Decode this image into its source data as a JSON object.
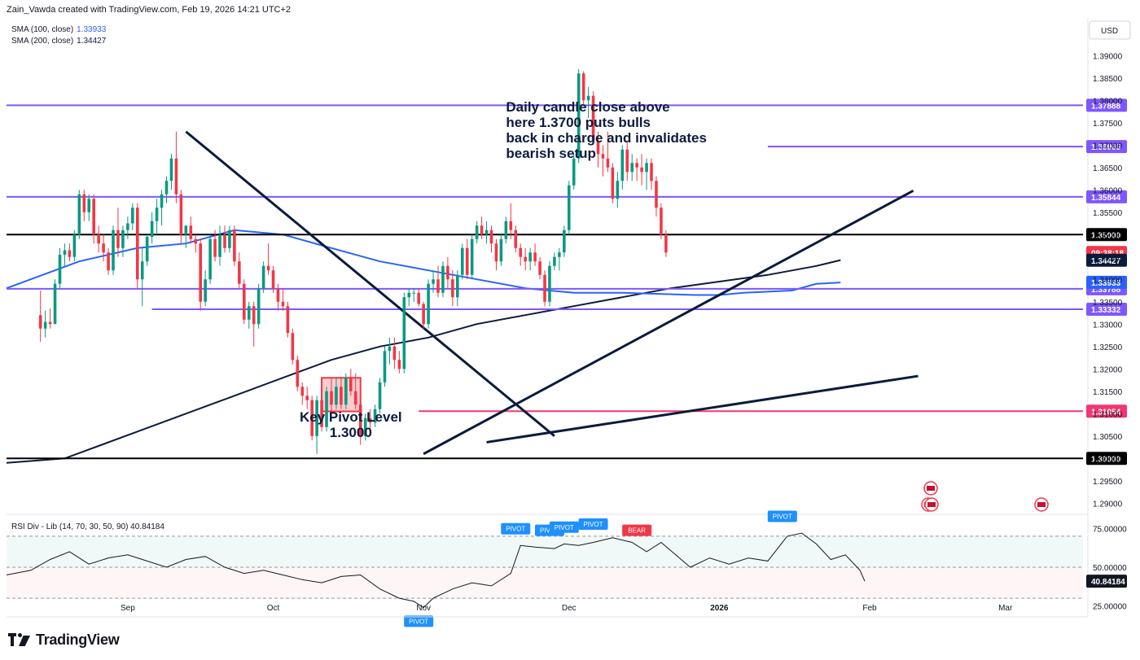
{
  "header": {
    "text": "Zain_Vawda created with TradingView.com, Feb 19, 2026 14:21 UTC+2"
  },
  "indicators": [
    {
      "label": "SMA (100, close)",
      "value": "1.33933",
      "color": "#2962ff"
    },
    {
      "label": "SMA (200, close)",
      "value": "1.34427",
      "color": "#0b1b3d"
    }
  ],
  "currency": "USD",
  "chart_data": {
    "type": "candlestick",
    "ylim": [
      1.2875,
      1.3915
    ],
    "y_ticks": [
      "1.39000",
      "1.38500",
      "1.38000",
      "1.37500",
      "1.37000",
      "1.36500",
      "1.36000",
      "1.35500",
      "1.35000",
      "1.34500",
      "1.34000",
      "1.33500",
      "1.33000",
      "1.32500",
      "1.32000",
      "1.31500",
      "1.31000",
      "1.30500",
      "1.30000",
      "1.29500",
      "1.29000"
    ],
    "x_ticks": [
      {
        "label": "Sep",
        "x": 18
      },
      {
        "label": "Oct",
        "x": 48
      },
      {
        "label": "Nov",
        "x": 79
      },
      {
        "label": "Dec",
        "x": 109
      },
      {
        "label": "2026",
        "x": 140
      },
      {
        "label": "Feb",
        "x": 171
      },
      {
        "label": "Mar",
        "x": 199
      }
    ],
    "x_range": [
      -7,
      215
    ],
    "candles": [
      [
        1.332,
        1.3375,
        1.326,
        1.329
      ],
      [
        1.329,
        1.333,
        1.327,
        1.3305
      ],
      [
        1.3305,
        1.3335,
        1.329,
        1.33
      ],
      [
        1.33,
        1.34,
        1.33,
        1.339
      ],
      [
        1.339,
        1.347,
        1.338,
        1.3455
      ],
      [
        1.3455,
        1.348,
        1.343,
        1.3465
      ],
      [
        1.3465,
        1.348,
        1.344,
        1.345
      ],
      [
        1.345,
        1.351,
        1.344,
        1.35
      ],
      [
        1.35,
        1.36,
        1.349,
        1.359
      ],
      [
        1.359,
        1.36,
        1.353,
        1.355
      ],
      [
        1.355,
        1.359,
        1.353,
        1.358
      ],
      [
        1.358,
        1.359,
        1.348,
        1.35
      ],
      [
        1.35,
        1.352,
        1.346,
        1.348
      ],
      [
        1.348,
        1.35,
        1.344,
        1.346
      ],
      [
        1.346,
        1.347,
        1.341,
        1.342
      ],
      [
        1.342,
        1.352,
        1.341,
        1.351
      ],
      [
        1.351,
        1.356,
        1.345,
        1.347
      ],
      [
        1.347,
        1.352,
        1.345,
        1.351
      ],
      [
        1.351,
        1.354,
        1.349,
        1.3525
      ],
      [
        1.3525,
        1.357,
        1.351,
        1.356
      ],
      [
        1.356,
        1.357,
        1.338,
        1.34
      ],
      [
        1.34,
        1.347,
        1.334,
        1.344
      ],
      [
        1.344,
        1.35,
        1.343,
        1.3495
      ],
      [
        1.3495,
        1.355,
        1.348,
        1.353
      ],
      [
        1.353,
        1.358,
        1.35,
        1.356
      ],
      [
        1.356,
        1.36,
        1.352,
        1.359
      ],
      [
        1.359,
        1.363,
        1.357,
        1.362
      ],
      [
        1.362,
        1.368,
        1.36,
        1.367
      ],
      [
        1.367,
        1.373,
        1.357,
        1.359
      ],
      [
        1.359,
        1.36,
        1.348,
        1.35
      ],
      [
        1.35,
        1.352,
        1.347,
        1.352
      ],
      [
        1.352,
        1.354,
        1.348,
        1.349
      ],
      [
        1.349,
        1.35,
        1.346,
        1.348
      ],
      [
        1.348,
        1.349,
        1.333,
        1.335
      ],
      [
        1.335,
        1.342,
        1.334,
        1.34
      ],
      [
        1.34,
        1.35,
        1.339,
        1.349
      ],
      [
        1.349,
        1.351,
        1.344,
        1.345
      ],
      [
        1.345,
        1.352,
        1.343,
        1.35
      ],
      [
        1.35,
        1.352,
        1.346,
        1.347
      ],
      [
        1.347,
        1.352,
        1.346,
        1.351
      ],
      [
        1.351,
        1.352,
        1.343,
        1.344
      ],
      [
        1.344,
        1.346,
        1.338,
        1.339
      ],
      [
        1.339,
        1.34,
        1.33,
        1.331
      ],
      [
        1.331,
        1.335,
        1.329,
        1.334
      ],
      [
        1.334,
        1.335,
        1.325,
        1.33
      ],
      [
        1.33,
        1.339,
        1.329,
        1.338
      ],
      [
        1.338,
        1.344,
        1.337,
        1.343
      ],
      [
        1.343,
        1.348,
        1.341,
        1.342
      ],
      [
        1.342,
        1.343,
        1.337,
        1.338
      ],
      [
        1.338,
        1.339,
        1.333,
        1.335
      ],
      [
        1.335,
        1.338,
        1.333,
        1.334
      ],
      [
        1.334,
        1.335,
        1.327,
        1.328
      ],
      [
        1.328,
        1.329,
        1.321,
        1.322
      ],
      [
        1.322,
        1.323,
        1.315,
        1.316
      ],
      [
        1.316,
        1.317,
        1.312,
        1.314
      ],
      [
        1.314,
        1.316,
        1.311,
        1.313
      ],
      [
        1.313,
        1.314,
        1.304,
        1.305
      ],
      [
        1.305,
        1.314,
        1.301,
        1.313
      ],
      [
        1.313,
        1.314,
        1.306,
        1.307
      ],
      [
        1.307,
        1.316,
        1.306,
        1.315
      ],
      [
        1.315,
        1.318,
        1.31,
        1.312
      ],
      [
        1.312,
        1.318,
        1.311,
        1.316
      ],
      [
        1.316,
        1.318,
        1.311,
        1.312
      ],
      [
        1.312,
        1.319,
        1.311,
        1.318
      ],
      [
        1.318,
        1.32,
        1.314,
        1.315
      ],
      [
        1.315,
        1.319,
        1.311,
        1.312
      ],
      [
        1.312,
        1.314,
        1.303,
        1.305
      ],
      [
        1.305,
        1.31,
        1.304,
        1.309
      ],
      [
        1.309,
        1.311,
        1.305,
        1.308
      ],
      [
        1.308,
        1.312,
        1.307,
        1.311
      ],
      [
        1.311,
        1.318,
        1.31,
        1.317
      ],
      [
        1.317,
        1.325,
        1.316,
        1.324
      ],
      [
        1.324,
        1.327,
        1.321,
        1.325
      ],
      [
        1.325,
        1.327,
        1.32,
        1.322
      ],
      [
        1.322,
        1.324,
        1.319,
        1.32
      ],
      [
        1.32,
        1.337,
        1.319,
        1.336
      ],
      [
        1.336,
        1.338,
        1.334,
        1.337
      ],
      [
        1.337,
        1.338,
        1.335,
        1.337
      ],
      [
        1.337,
        1.338,
        1.334,
        1.3345
      ],
      [
        1.3345,
        1.335,
        1.329,
        1.33
      ],
      [
        1.33,
        1.34,
        1.329,
        1.339
      ],
      [
        1.339,
        1.342,
        1.337,
        1.34
      ],
      [
        1.34,
        1.343,
        1.336,
        1.337
      ],
      [
        1.337,
        1.344,
        1.336,
        1.343
      ],
      [
        1.343,
        1.345,
        1.338,
        1.34
      ],
      [
        1.34,
        1.342,
        1.334,
        1.336
      ],
      [
        1.336,
        1.342,
        1.334,
        1.341
      ],
      [
        1.341,
        1.348,
        1.34,
        1.347
      ],
      [
        1.347,
        1.349,
        1.34,
        1.341
      ],
      [
        1.341,
        1.35,
        1.34,
        1.349
      ],
      [
        1.349,
        1.353,
        1.348,
        1.352
      ],
      [
        1.352,
        1.354,
        1.349,
        1.35
      ],
      [
        1.35,
        1.353,
        1.348,
        1.351
      ],
      [
        1.351,
        1.352,
        1.346,
        1.348
      ],
      [
        1.348,
        1.349,
        1.342,
        1.344
      ],
      [
        1.344,
        1.35,
        1.343,
        1.349
      ],
      [
        1.349,
        1.354,
        1.348,
        1.353
      ],
      [
        1.353,
        1.357,
        1.349,
        1.351
      ],
      [
        1.351,
        1.352,
        1.346,
        1.347
      ],
      [
        1.347,
        1.348,
        1.343,
        1.345
      ],
      [
        1.345,
        1.347,
        1.342,
        1.344
      ],
      [
        1.344,
        1.347,
        1.342,
        1.346
      ],
      [
        1.346,
        1.348,
        1.343,
        1.344
      ],
      [
        1.344,
        1.345,
        1.34,
        1.341
      ],
      [
        1.341,
        1.342,
        1.334,
        1.335
      ],
      [
        1.335,
        1.344,
        1.334,
        1.343
      ],
      [
        1.343,
        1.346,
        1.342,
        1.345
      ],
      [
        1.345,
        1.347,
        1.342,
        1.346
      ],
      [
        1.346,
        1.352,
        1.345,
        1.351
      ],
      [
        1.351,
        1.362,
        1.35,
        1.361
      ],
      [
        1.361,
        1.368,
        1.36,
        1.367
      ],
      [
        1.367,
        1.387,
        1.366,
        1.386
      ],
      [
        1.386,
        1.3865,
        1.379,
        1.38
      ],
      [
        1.38,
        1.383,
        1.376,
        1.381
      ],
      [
        1.381,
        1.382,
        1.37,
        1.371
      ],
      [
        1.371,
        1.373,
        1.365,
        1.368
      ],
      [
        1.368,
        1.37,
        1.363,
        1.367
      ],
      [
        1.367,
        1.373,
        1.364,
        1.365
      ],
      [
        1.365,
        1.366,
        1.357,
        1.358
      ],
      [
        1.358,
        1.364,
        1.356,
        1.362
      ],
      [
        1.362,
        1.37,
        1.36,
        1.369
      ],
      [
        1.369,
        1.371,
        1.362,
        1.364
      ],
      [
        1.364,
        1.368,
        1.362,
        1.366
      ],
      [
        1.366,
        1.367,
        1.362,
        1.365
      ],
      [
        1.365,
        1.368,
        1.361,
        1.364
      ],
      [
        1.364,
        1.367,
        1.36,
        1.366
      ],
      [
        1.366,
        1.367,
        1.36,
        1.362
      ],
      [
        1.362,
        1.363,
        1.354,
        1.356
      ],
      [
        1.356,
        1.357,
        1.349,
        1.35
      ],
      [
        1.35,
        1.351,
        1.345,
        1.346
      ]
    ],
    "sma100": [
      [
        -7,
        1.338
      ],
      [
        8,
        1.344
      ],
      [
        20,
        1.347
      ],
      [
        30,
        1.348
      ],
      [
        40,
        1.351
      ],
      [
        50,
        1.35
      ],
      [
        60,
        1.347
      ],
      [
        70,
        1.344
      ],
      [
        80,
        1.342
      ],
      [
        90,
        1.34
      ],
      [
        100,
        1.338
      ],
      [
        110,
        1.337
      ],
      [
        120,
        1.337
      ],
      [
        135,
        1.3365
      ],
      [
        140,
        1.3365
      ],
      [
        145,
        1.337
      ],
      [
        155,
        1.3375
      ],
      [
        160,
        1.339
      ],
      [
        165,
        1.3393
      ]
    ],
    "sma200": [
      [
        -7,
        1.299
      ],
      [
        5,
        1.3
      ],
      [
        20,
        1.306
      ],
      [
        30,
        1.31
      ],
      [
        40,
        1.314
      ],
      [
        50,
        1.318
      ],
      [
        60,
        1.322
      ],
      [
        70,
        1.325
      ],
      [
        80,
        1.327
      ],
      [
        90,
        1.33
      ],
      [
        100,
        1.332
      ],
      [
        110,
        1.334
      ],
      [
        120,
        1.336
      ],
      [
        130,
        1.338
      ],
      [
        140,
        1.3395
      ],
      [
        150,
        1.341
      ],
      [
        160,
        1.343
      ],
      [
        165,
        1.3443
      ]
    ],
    "h_levels": [
      {
        "value": 1.37888,
        "label": "1.37888",
        "color": "#7e57ff",
        "x0": -7
      },
      {
        "value": 1.36965,
        "label": "1.36965",
        "color": "#7e57ff",
        "x0": 150
      },
      {
        "value": 1.35844,
        "label": "1.35844",
        "color": "#7e57ff",
        "x0": -7
      },
      {
        "value": 1.35,
        "label": "1.35000",
        "color": "#000000",
        "x0": -7
      },
      {
        "value": 1.33788,
        "label": "1.33788",
        "color": "#7e57ff",
        "x0": -7
      },
      {
        "value": 1.33332,
        "label": "1.33332",
        "color": "#7e57ff",
        "x0": 23
      },
      {
        "value": 1.31054,
        "label": "1.31054",
        "color": "#f23672",
        "x0": 78
      },
      {
        "value": 1.3,
        "label": "1.30000",
        "color": "#000000",
        "x0": -7
      }
    ],
    "right_badges": [
      {
        "value": 1.346,
        "text": "09:38:18",
        "color": "#f23645"
      },
      {
        "value": 1.34427,
        "text": "1.34427",
        "color": "#0b1b3d"
      },
      {
        "value": 1.33933,
        "text": "1.33933",
        "color": "#2962ff"
      }
    ],
    "trendlines": [
      {
        "p1": [
          30,
          1.373
        ],
        "p2": [
          106,
          1.305
        ]
      },
      {
        "p1": [
          79,
          1.301
        ],
        "p2": [
          180,
          1.3598
        ]
      },
      {
        "p1": [
          92,
          1.3036
        ],
        "p2": [
          181,
          1.3184
        ]
      }
    ],
    "annotations": [
      {
        "lines": [
          "Daily candle close above",
          "here 1.3700 puts bulls",
          "back in charge and invalidates",
          "bearish setup"
        ],
        "x": 96,
        "y": 1.3775
      },
      {
        "lines": [
          "Key Pivot Level",
          "1.3000"
        ],
        "x": 64,
        "y": 1.3082,
        "center": true
      }
    ],
    "rsi": {
      "label": "RSI Div - Lib (14, 70, 30, 50, 90)",
      "value": "40.84184",
      "ylim": [
        18,
        82
      ],
      "levels": [
        {
          "v": 70,
          "label": ""
        },
        {
          "v": 50,
          "label": "50.00000"
        },
        {
          "v": 30,
          "label": ""
        }
      ],
      "ticks": [
        "75.00000",
        "25.00000"
      ],
      "points": [
        [
          -7,
          45
        ],
        [
          -2,
          48
        ],
        [
          2,
          55
        ],
        [
          6,
          60
        ],
        [
          10,
          52
        ],
        [
          14,
          56
        ],
        [
          18,
          58
        ],
        [
          22,
          54
        ],
        [
          26,
          50
        ],
        [
          30,
          55
        ],
        [
          34,
          57
        ],
        [
          38,
          50
        ],
        [
          42,
          46
        ],
        [
          46,
          48
        ],
        [
          50,
          45
        ],
        [
          54,
          42
        ],
        [
          58,
          40
        ],
        [
          62,
          44
        ],
        [
          66,
          45
        ],
        [
          70,
          36
        ],
        [
          74,
          30
        ],
        [
          77,
          28
        ],
        [
          79,
          24
        ],
        [
          81,
          30
        ],
        [
          85,
          36
        ],
        [
          89,
          40
        ],
        [
          93,
          38
        ],
        [
          97,
          46
        ],
        [
          99,
          64
        ],
        [
          102,
          63
        ],
        [
          106,
          62
        ],
        [
          108,
          65
        ],
        [
          111,
          64
        ],
        [
          114,
          66
        ],
        [
          118,
          69
        ],
        [
          122,
          66
        ],
        [
          125,
          60
        ],
        [
          128,
          66
        ],
        [
          131,
          58
        ],
        [
          134,
          50
        ],
        [
          138,
          56
        ],
        [
          142,
          52
        ],
        [
          146,
          56
        ],
        [
          150,
          54
        ],
        [
          154,
          70
        ],
        [
          157,
          72
        ],
        [
          160,
          65
        ],
        [
          163,
          55
        ],
        [
          166,
          58
        ],
        [
          169,
          48
        ],
        [
          170,
          41
        ]
      ],
      "labels": [
        {
          "text": "PIVOT",
          "x": 98,
          "v": 68,
          "color": "#1e90ff"
        },
        {
          "text": "PIVOT",
          "x": 105,
          "v": 67,
          "color": "#1e90ff"
        },
        {
          "text": "PIVOT",
          "x": 108,
          "v": 69,
          "color": "#1e90ff"
        },
        {
          "text": "PIVOT",
          "x": 114,
          "v": 71,
          "color": "#1e90ff"
        },
        {
          "text": "BEAR",
          "x": 123,
          "v": 67,
          "color": "#f23645"
        },
        {
          "text": "PIVOT",
          "x": 153,
          "v": 76,
          "color": "#1e90ff"
        },
        {
          "text": "PIVOT",
          "x": 78,
          "v": 22,
          "color": "#1e90ff",
          "below": true
        }
      ]
    }
  },
  "footer": {
    "brand": "TradingView"
  }
}
